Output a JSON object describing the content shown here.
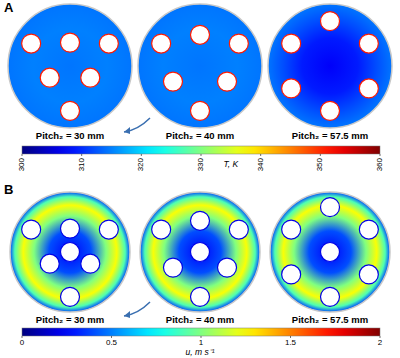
{
  "chart_data": [
    {
      "type": "contour",
      "panel": "A",
      "panels": [
        {
          "label": "Pitch₂ = 30 mm",
          "pitch": 30
        },
        {
          "label": "Pitch₂ = 40 mm",
          "pitch": 40
        },
        {
          "label": "Pitch₂ = 57.5 mm",
          "pitch": 57.5
        }
      ],
      "colorbar": {
        "label": "T, K",
        "range": [
          300,
          360
        ],
        "ticks": [
          300,
          310,
          320,
          330,
          340,
          350,
          360
        ]
      }
    },
    {
      "type": "contour",
      "panel": "B",
      "panels": [
        {
          "label": "Pitch₂ = 30 mm",
          "pitch": 30
        },
        {
          "label": "Pitch₂ = 40 mm",
          "pitch": 40
        },
        {
          "label": "Pitch₂ = 57.5 mm",
          "pitch": 57.5
        }
      ],
      "colorbar": {
        "label": "u, m s⁻¹",
        "range": [
          0,
          2
        ],
        "ticks": [
          0,
          0.5,
          1,
          1.5,
          2
        ]
      }
    }
  ]
}
